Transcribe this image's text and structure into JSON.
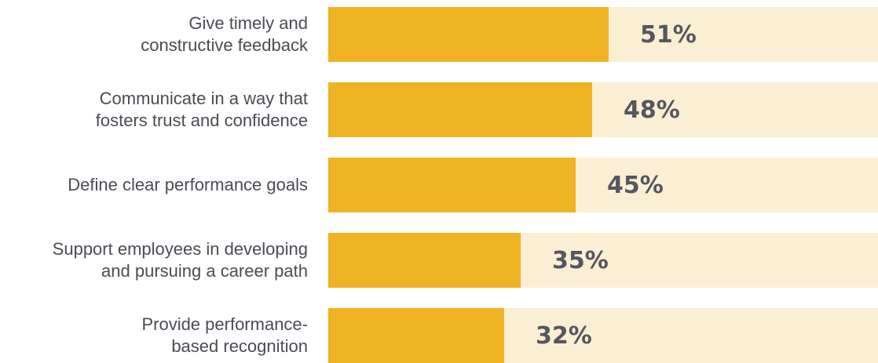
{
  "colors": {
    "bar_fill": "#f0b323",
    "bar_track": "#fbefd3",
    "label_text": "#4b4b55",
    "value_text": "#55565f"
  },
  "chart_data": {
    "type": "bar",
    "orientation": "horizontal",
    "xlim": [
      0,
      100
    ],
    "grid": false,
    "categories": [
      "Give timely and\nconstructive feedback",
      "Communicate in a way that\nfosters trust and confidence",
      "Define clear performance goals",
      "Support employees in developing\nand pursuing a career path",
      "Provide performance-\nbased recognition"
    ],
    "values": [
      51,
      48,
      45,
      35,
      32
    ],
    "value_labels": [
      "51%",
      "48%",
      "45%",
      "35%",
      "32%"
    ]
  }
}
